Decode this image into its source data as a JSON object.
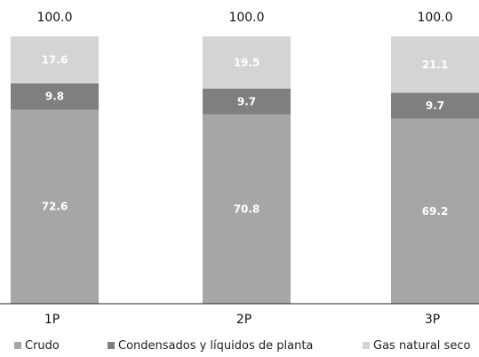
{
  "chart_data": {
    "type": "bar",
    "stacked": true,
    "categories": [
      "1P",
      "2P",
      "3P"
    ],
    "totals": [
      "100.0",
      "100.0",
      "100.0"
    ],
    "series": [
      {
        "name": "Crudo",
        "values": [
          72.6,
          70.8,
          69.2
        ],
        "color": "#a6a6a6",
        "labels": [
          "72.6",
          "70.8",
          "69.2"
        ]
      },
      {
        "name": "Condensados y líquidos de planta",
        "values": [
          9.8,
          9.7,
          9.7
        ],
        "color": "#7f7f7f",
        "labels": [
          "9.8",
          "9.7",
          "9.7"
        ]
      },
      {
        "name": "Gas natural seco",
        "values": [
          17.6,
          19.5,
          21.1
        ],
        "color": "#d4d4d4",
        "labels": [
          "17.6",
          "19.5",
          "21.1"
        ]
      }
    ],
    "ylim": [
      0,
      100
    ],
    "legend_position": "bottom",
    "grid": false,
    "title": "",
    "xlabel": "",
    "ylabel": ""
  }
}
